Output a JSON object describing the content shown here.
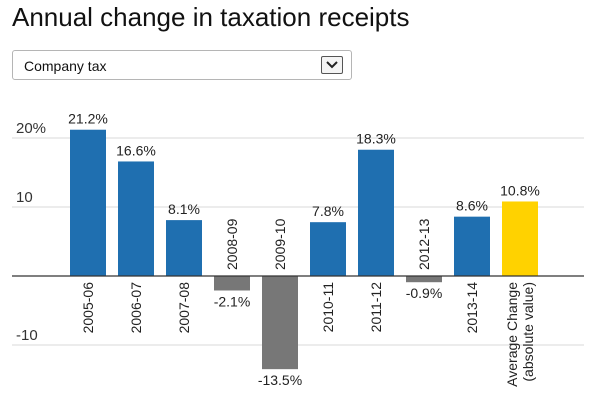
{
  "header": {
    "title": "Annual change in taxation receipts"
  },
  "selector": {
    "value": "Company tax",
    "icon": "chevron-down-icon"
  },
  "colors": {
    "positive": "#1f6fb0",
    "negative": "#777777",
    "average": "#ffd200",
    "grid": "#d9d9d9",
    "axis": "#333333"
  },
  "chart_data": {
    "type": "bar",
    "categories": [
      "2005-06",
      "2006-07",
      "2007-08",
      "2008-09",
      "2009-10",
      "2010-11",
      "2011-12",
      "2012-13",
      "2013-14",
      "Average Change\n(absolute value)"
    ],
    "values": [
      21.2,
      16.6,
      8.1,
      -2.1,
      -13.5,
      7.8,
      18.3,
      -0.9,
      8.6,
      10.8
    ],
    "data_labels": [
      "21.2%",
      "16.6%",
      "8.1%",
      "-2.1%",
      "-13.5%",
      "7.8%",
      "18.3%",
      "-0.9%",
      "8.6%",
      "10.8%"
    ],
    "yticks": [
      {
        "value": 20,
        "label": "20%"
      },
      {
        "value": 10,
        "label": "10"
      },
      {
        "value": -10,
        "label": "-10"
      }
    ],
    "ylim": [
      -14,
      22
    ],
    "grid": true,
    "legend": "none",
    "title": "",
    "xlabel": "",
    "ylabel": ""
  }
}
